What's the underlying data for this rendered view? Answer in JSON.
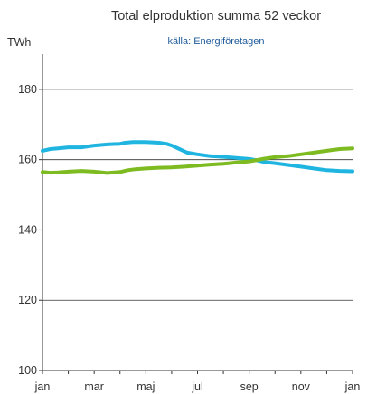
{
  "chart_data": {
    "type": "line",
    "title": "Total elproduktion summa 52 veckor",
    "subtitle": "källa: Energiföretagen",
    "ylabel": "TWh",
    "xlabel": "",
    "ylim": [
      100,
      190
    ],
    "y_ticks": [
      100,
      120,
      140,
      160,
      180
    ],
    "x_tick_labels": [
      "jan",
      "mar",
      "maj",
      "jul",
      "sep",
      "nov",
      "jan"
    ],
    "x_tick_months": [
      0,
      2,
      4,
      6,
      8,
      10,
      12
    ],
    "grid": true,
    "legend": "none",
    "series": [
      {
        "color": "#1fb5e0",
        "x": [
          0,
          0.3,
          0.6,
          1,
          1.5,
          2,
          2.5,
          3,
          3.2,
          3.5,
          4,
          4.5,
          4.8,
          5,
          5.3,
          5.6,
          6,
          6.5,
          7,
          7.5,
          8,
          8.3,
          8.6,
          9,
          9.5,
          10,
          10.5,
          11,
          11.5,
          12
        ],
        "values": [
          162.5,
          163.0,
          163.2,
          163.5,
          163.5,
          164.0,
          164.3,
          164.5,
          164.8,
          165.0,
          165.0,
          164.8,
          164.5,
          164.0,
          163.0,
          162.0,
          161.5,
          161.0,
          160.8,
          160.5,
          160.2,
          159.8,
          159.3,
          159.0,
          158.5,
          158.0,
          157.5,
          157.0,
          156.8,
          156.7
        ]
      },
      {
        "color": "#7dbb21",
        "x": [
          0,
          0.3,
          0.6,
          1,
          1.5,
          2,
          2.5,
          3,
          3.3,
          3.6,
          4,
          4.5,
          5,
          5.5,
          6,
          6.5,
          7,
          7.5,
          8,
          8.3,
          8.6,
          9,
          9.5,
          10,
          10.5,
          11,
          11.5,
          12
        ],
        "values": [
          156.5,
          156.3,
          156.4,
          156.6,
          156.8,
          156.6,
          156.2,
          156.5,
          157.0,
          157.3,
          157.5,
          157.7,
          157.8,
          158.0,
          158.3,
          158.6,
          158.8,
          159.2,
          159.5,
          159.9,
          160.3,
          160.7,
          161.0,
          161.5,
          162.0,
          162.5,
          163.0,
          163.2
        ]
      }
    ]
  }
}
